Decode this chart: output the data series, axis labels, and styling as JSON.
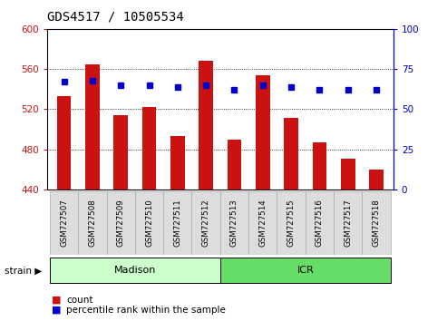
{
  "title": "GDS4517 / 10505534",
  "samples": [
    "GSM727507",
    "GSM727508",
    "GSM727509",
    "GSM727510",
    "GSM727511",
    "GSM727512",
    "GSM727513",
    "GSM727514",
    "GSM727515",
    "GSM727516",
    "GSM727517",
    "GSM727518"
  ],
  "counts": [
    533,
    565,
    514,
    522,
    493,
    568,
    490,
    554,
    511,
    487,
    471,
    460
  ],
  "percentiles": [
    67,
    68,
    65,
    65,
    64,
    65,
    62,
    65,
    64,
    62,
    62,
    62
  ],
  "bar_color": "#CC1111",
  "dot_color": "#0000CC",
  "ylim_left": [
    440,
    600
  ],
  "ylim_right": [
    0,
    100
  ],
  "yticks_left": [
    440,
    480,
    520,
    560,
    600
  ],
  "yticks_right": [
    0,
    25,
    50,
    75,
    100
  ],
  "legend_count_label": "count",
  "legend_pct_label": "percentile rank within the sample",
  "strain_label": "strain",
  "groups_info": [
    {
      "label": "Madison",
      "start": 0,
      "end": 5
    },
    {
      "label": "ICR",
      "start": 6,
      "end": 11
    }
  ],
  "madison_color": "#CCFFCC",
  "icr_color": "#66DD66",
  "group_border_color": "#000000",
  "title_fontsize": 10,
  "tick_fontsize": 7.5,
  "bar_width": 0.5,
  "tick_color_left": "#CC1111",
  "tick_color_right": "#0000CC",
  "label_box_color": "#DDDDDD",
  "label_box_edge": "#AAAAAA"
}
